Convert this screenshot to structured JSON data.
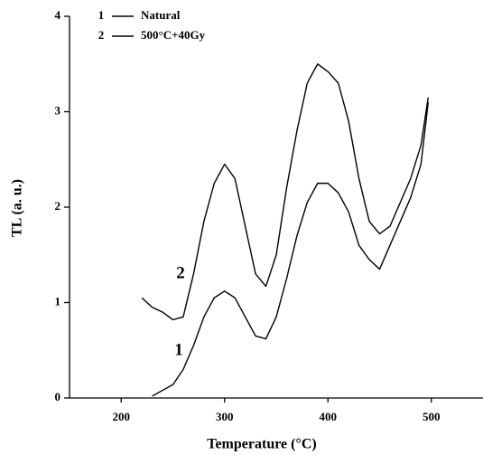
{
  "chart_data": {
    "type": "line",
    "xlabel": "Temperature (°C)",
    "ylabel": "TL (a. u.)",
    "x": [
      220,
      230,
      240,
      250,
      260,
      270,
      280,
      290,
      300,
      310,
      320,
      330,
      340,
      350,
      360,
      370,
      380,
      390,
      400,
      410,
      420,
      430,
      440,
      450,
      460,
      470,
      480,
      490,
      497
    ],
    "series": [
      {
        "id": "1",
        "name": "Natural",
        "color": "#000000",
        "values": [
          null,
          0.02,
          0.08,
          0.14,
          0.3,
          0.55,
          0.85,
          1.05,
          1.12,
          1.05,
          0.85,
          0.65,
          0.62,
          0.85,
          1.25,
          1.7,
          2.05,
          2.25,
          2.25,
          2.15,
          1.95,
          1.6,
          1.45,
          1.35,
          1.6,
          1.85,
          2.1,
          2.45,
          3.1
        ]
      },
      {
        "id": "2",
        "name": "500°C+40Gy",
        "color": "#000000",
        "values": [
          1.05,
          0.95,
          0.9,
          0.82,
          0.85,
          1.3,
          1.85,
          2.25,
          2.45,
          2.3,
          1.8,
          1.3,
          1.17,
          1.5,
          2.2,
          2.8,
          3.3,
          3.5,
          3.42,
          3.3,
          2.9,
          2.3,
          1.85,
          1.72,
          1.8,
          2.05,
          2.3,
          2.65,
          3.15
        ]
      }
    ],
    "xlim": [
      150,
      550
    ],
    "xticks": [
      200,
      300,
      400,
      500
    ],
    "ylim": [
      0,
      4
    ],
    "yticks": [
      0,
      1,
      2,
      3,
      4
    ],
    "grid": false,
    "legend": "upper left"
  }
}
